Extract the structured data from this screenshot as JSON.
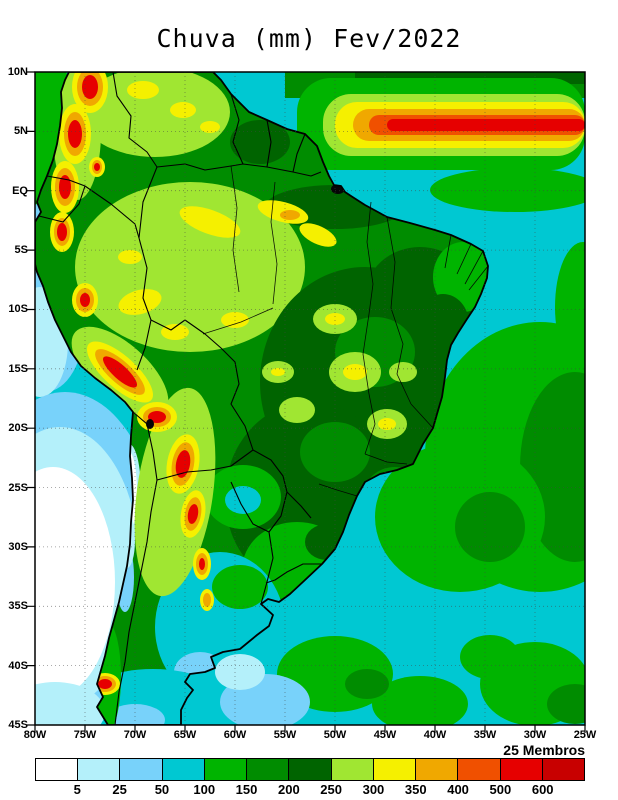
{
  "title": "Chuva (mm) Fev/2022",
  "axes": {
    "lat_ticks": [
      "10N",
      "5N",
      "EQ",
      "5S",
      "10S",
      "15S",
      "20S",
      "25S",
      "30S",
      "35S",
      "40S",
      "45S"
    ],
    "lon_ticks": [
      "80W",
      "75W",
      "70W",
      "65W",
      "60W",
      "55W",
      "50W",
      "45W",
      "40W",
      "35W",
      "30W",
      "25W"
    ]
  },
  "legend": {
    "members_label": "25 Membros",
    "labels": [
      "5",
      "25",
      "50",
      "100",
      "150",
      "200",
      "250",
      "300",
      "350",
      "400",
      "500",
      "600"
    ],
    "colors": [
      "#ffffff",
      "#b4f0fa",
      "#78d2fa",
      "#00c8d2",
      "#00b400",
      "#008c00",
      "#006400",
      "#a0e632",
      "#f5f000",
      "#f0a800",
      "#f05000",
      "#e60000",
      "#c80000"
    ]
  },
  "chart_data": {
    "type": "heatmap",
    "title": "Chuva (mm) Fev/2022",
    "variable": "Chuva",
    "units": "mm",
    "period": "Fev/2022",
    "ensemble_label": "25 Membros",
    "levels_mm": [
      5,
      25,
      50,
      100,
      150,
      200,
      250,
      300,
      350,
      400,
      500,
      600
    ],
    "palette": [
      "#ffffff",
      "#b4f0fa",
      "#78d2fa",
      "#00c8d2",
      "#00b400",
      "#008c00",
      "#006400",
      "#a0e632",
      "#f5f000",
      "#f0a800",
      "#f05000",
      "#e60000",
      "#c80000"
    ],
    "x_axis": {
      "kind": "longitude",
      "range": [
        "80W",
        "25W"
      ],
      "ticks": [
        "80W",
        "75W",
        "70W",
        "65W",
        "60W",
        "55W",
        "50W",
        "45W",
        "40W",
        "35W",
        "30W",
        "25W"
      ]
    },
    "y_axis": {
      "kind": "latitude",
      "range": [
        "10N",
        "45S"
      ],
      "ticks": [
        "10N",
        "5N",
        "EQ",
        "5S",
        "10S",
        "15S",
        "20S",
        "25S",
        "30S",
        "35S",
        "40S",
        "45S"
      ]
    },
    "grid": "dotted 5-degree graticule",
    "legend_position": "bottom horizontal colorbar"
  }
}
